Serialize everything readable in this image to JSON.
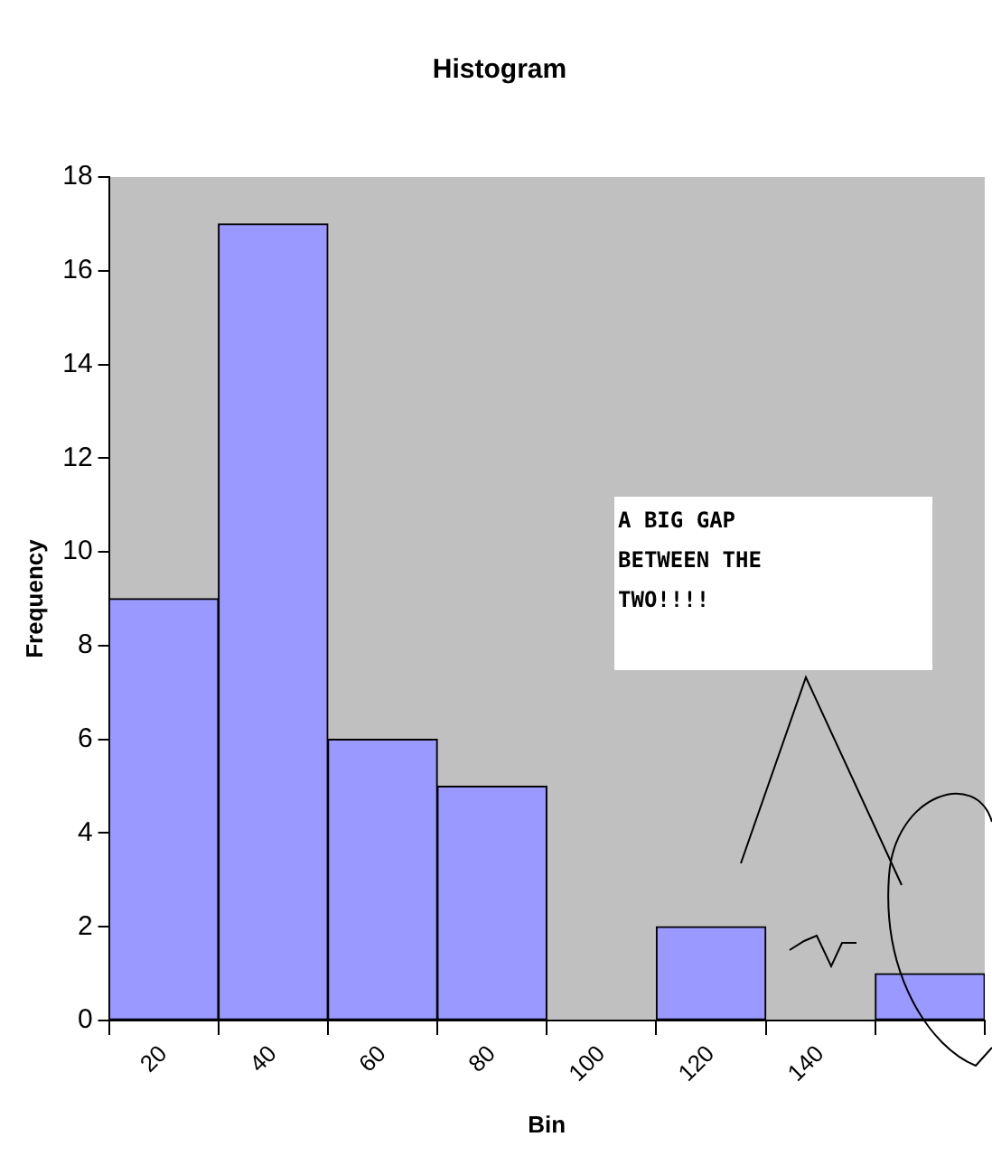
{
  "chart_data": {
    "type": "bar",
    "title": "Histogram",
    "xlabel": "Bin",
    "ylabel": "Frequency",
    "categories": [
      "20",
      "40",
      "60",
      "80",
      "100",
      "120",
      "140",
      null
    ],
    "values": [
      9,
      17,
      6,
      5,
      0,
      2,
      0,
      1
    ],
    "color": "#9999ff",
    "ylim": [
      0,
      18
    ],
    "yticks": [
      0,
      2,
      4,
      6,
      8,
      10,
      12,
      14,
      16,
      18
    ],
    "annotations": [
      "A BIG GAP BETWEEN THE TWO!!!!"
    ]
  }
}
